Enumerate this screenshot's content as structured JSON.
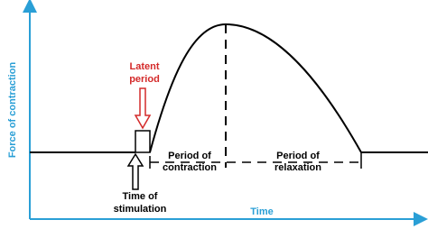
{
  "axes": {
    "y_label": "Force of contraction",
    "x_label": "Time"
  },
  "annotations": {
    "latent_period": [
      "Latent",
      "period"
    ],
    "period_of_contraction": [
      "Period of",
      "contraction"
    ],
    "period_of_relaxation": [
      "Period of",
      "relaxation"
    ],
    "time_of_stimulation": [
      "Time of",
      "stimulation"
    ]
  }
}
